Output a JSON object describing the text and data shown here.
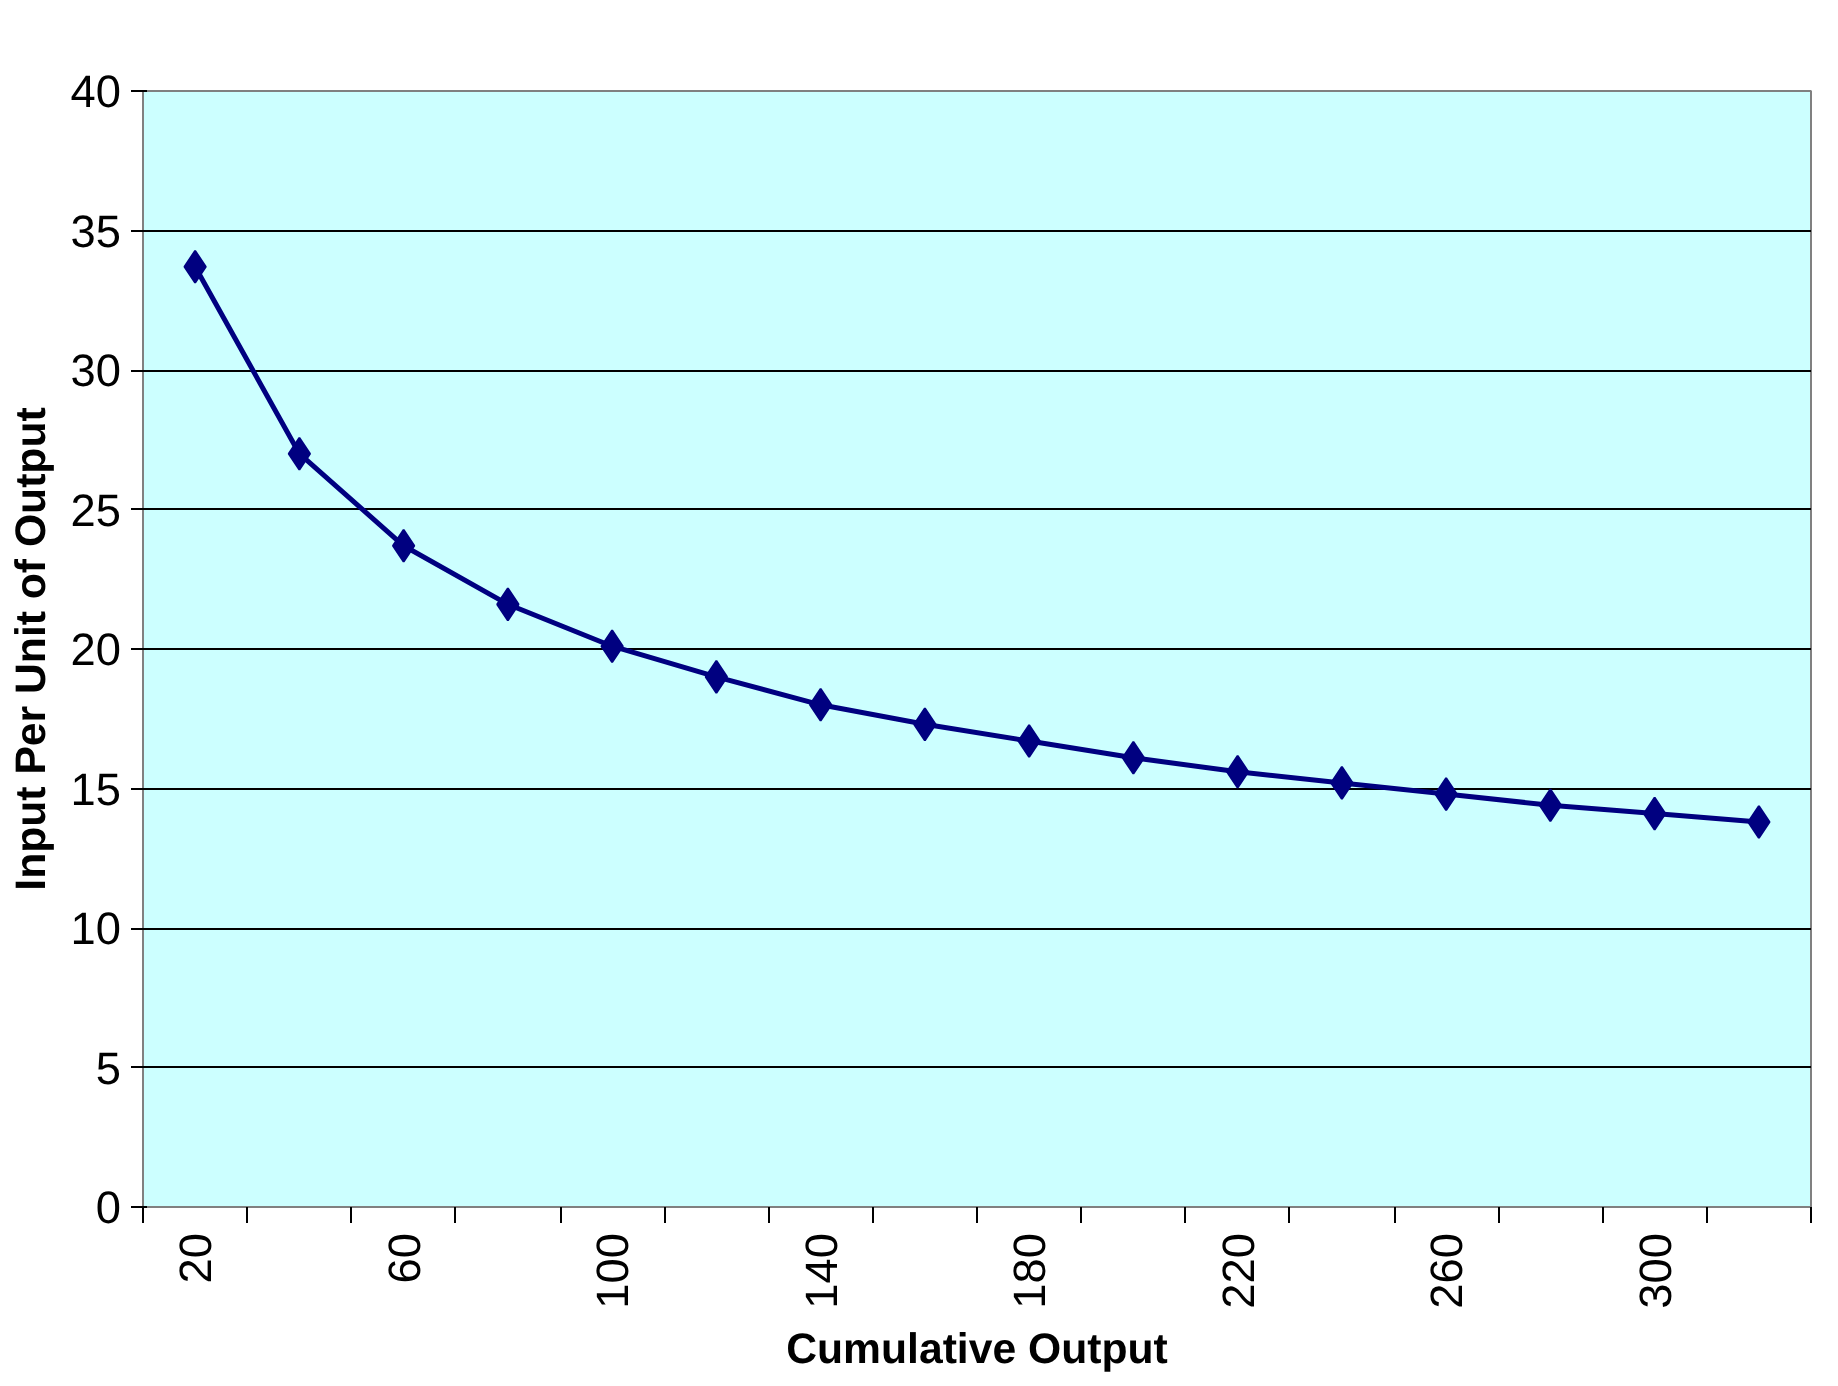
{
  "chart_data": {
    "type": "line",
    "xlabel": "Cumulative Output",
    "ylabel": "Input Per Unit of Output",
    "categories": [
      "20",
      null,
      "60",
      null,
      "100",
      null,
      "140",
      null,
      "180",
      null,
      "220",
      null,
      "260",
      null,
      "300",
      null
    ],
    "series": [
      {
        "color": "#000080",
        "values": [
          33.7,
          27.0,
          23.7,
          21.6,
          20.1,
          19.0,
          18.0,
          17.3,
          16.7,
          16.1,
          15.6,
          15.2,
          14.8,
          14.4,
          14.1,
          13.8
        ]
      }
    ],
    "ylim": [
      0,
      40
    ],
    "yticks": [
      0,
      5,
      10,
      15,
      20,
      25,
      30,
      35,
      40
    ],
    "grid": "y",
    "marker": "diamond",
    "line_style": "solid"
  }
}
